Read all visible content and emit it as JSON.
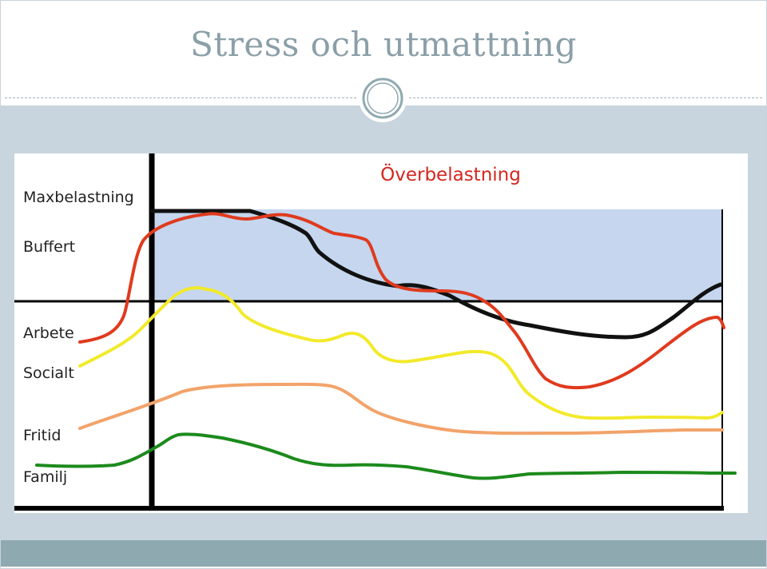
{
  "slide": {
    "title": "Stress och utmattning"
  },
  "diagram": {
    "overload_label": "Överbelastning",
    "row_labels": {
      "max": "Maxbelastning",
      "buffer": "Buffert",
      "work": "Arbete",
      "social": "Socialt",
      "leisure": "Fritid",
      "family": "Familj"
    },
    "colors": {
      "overload_area": "#c5d6ee",
      "black_line": "#111111",
      "red_line": "#e03a1e",
      "yellow_line": "#f2ea2a",
      "orange_line": "#f2a36a",
      "green_line": "#1c8a1c",
      "overload_text": "#d4261f"
    }
  }
}
